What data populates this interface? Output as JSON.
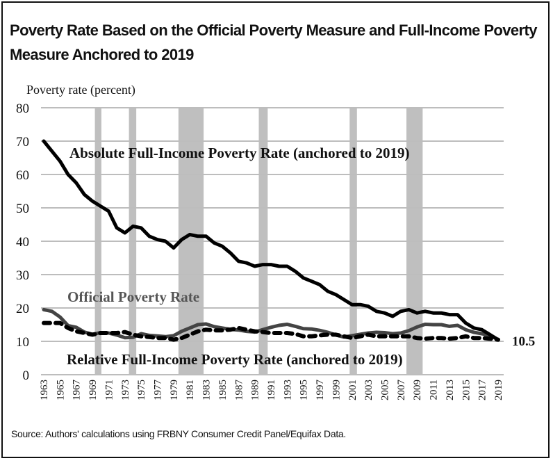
{
  "title": "Poverty Rate Based on the Official Poverty Measure and Full-Income Poverty Measure Anchored to 2019",
  "source": "Source: Authors' calculations using FRBNY Consumer Credit Panel/Equifax Data.",
  "chart_data": {
    "type": "line",
    "title": "Poverty Rate Based on the Official Poverty Measure and Full-Income Poverty Measure Anchored to 2019",
    "xlabel": "",
    "ylabel": "Poverty rate (percent)",
    "ylim": [
      0,
      80
    ],
    "yticks": [
      0,
      10,
      20,
      30,
      40,
      50,
      60,
      70,
      80
    ],
    "xlim": [
      1963,
      2019
    ],
    "xtick_labels": [
      "1963",
      "1965",
      "1967",
      "1969",
      "1971",
      "1973",
      "1975",
      "1977",
      "1979",
      "1981",
      "1983",
      "1985",
      "1987",
      "1989",
      "1991",
      "1993",
      "1995",
      "1997",
      "1999",
      "2001",
      "2003",
      "2005",
      "2007",
      "2009",
      "2011",
      "2013",
      "2015",
      "2017",
      "2019"
    ],
    "grid": "horizontal",
    "recessions": [
      [
        1969.3,
        1970.1
      ],
      [
        1973.5,
        1974.4
      ],
      [
        1979.6,
        1982.7
      ],
      [
        1989.5,
        1990.6
      ],
      [
        2000.7,
        2001.6
      ],
      [
        2007.7,
        2009.7
      ]
    ],
    "x": [
      1963,
      1964,
      1965,
      1966,
      1967,
      1968,
      1969,
      1970,
      1971,
      1972,
      1973,
      1974,
      1975,
      1976,
      1977,
      1978,
      1979,
      1980,
      1981,
      1982,
      1983,
      1984,
      1985,
      1986,
      1987,
      1988,
      1989,
      1990,
      1991,
      1992,
      1993,
      1994,
      1995,
      1996,
      1997,
      1998,
      1999,
      2000,
      2001,
      2002,
      2003,
      2004,
      2005,
      2006,
      2007,
      2008,
      2009,
      2010,
      2011,
      2012,
      2013,
      2014,
      2015,
      2016,
      2017,
      2018,
      2019
    ],
    "series": [
      {
        "name": "Absolute Full-Income Poverty Rate (anchored to 2019)",
        "style": "solid-black",
        "color": "#000000",
        "values": [
          70,
          67,
          64,
          60,
          57.5,
          54,
          52,
          50.5,
          49,
          44,
          42.5,
          44.5,
          44,
          41.5,
          40.5,
          40,
          38,
          40.5,
          42,
          41.5,
          41.5,
          39.5,
          38.5,
          36.5,
          34,
          33.5,
          32.5,
          33,
          33,
          32.5,
          32.5,
          31,
          29,
          28,
          27,
          25,
          24,
          22.5,
          21,
          21,
          20.5,
          19,
          18.5,
          17.5,
          19,
          19.5,
          18.5,
          19,
          18.5,
          18.5,
          18,
          18,
          15.5,
          14,
          13.5,
          12,
          10.5
        ]
      },
      {
        "name": "Official Poverty Rate",
        "style": "solid-gray",
        "color": "#444444",
        "values": [
          19.5,
          19,
          17.3,
          14.7,
          14.2,
          12.8,
          12.1,
          12.6,
          12.5,
          11.9,
          11.1,
          11.2,
          12.3,
          11.8,
          11.6,
          11.4,
          11.7,
          13,
          14,
          15,
          15.2,
          14.4,
          14,
          13.6,
          13.4,
          13,
          12.8,
          13.5,
          14.2,
          14.8,
          15.1,
          14.5,
          13.8,
          13.7,
          13.3,
          12.7,
          11.9,
          11.3,
          11.7,
          12.1,
          12.5,
          12.7,
          12.6,
          12.3,
          12.5,
          13.2,
          14.3,
          15.1,
          15,
          15,
          14.5,
          14.8,
          13.5,
          12.7,
          12.3,
          11.8,
          10.5
        ]
      },
      {
        "name": "Relative Full-Income Poverty Rate (anchored to 2019)",
        "style": "dashed-black",
        "color": "#000000",
        "values": [
          15.5,
          15.5,
          15.5,
          14,
          13,
          12.5,
          12,
          12.5,
          12.5,
          12.5,
          12.8,
          12,
          11.5,
          11.3,
          11,
          11,
          10.5,
          11,
          12,
          13,
          13.5,
          13.3,
          13.3,
          13.5,
          14,
          13.5,
          13,
          12.8,
          12.5,
          12.5,
          12.5,
          12.2,
          11.5,
          11.5,
          11.8,
          12,
          12,
          11.5,
          11,
          11.5,
          12,
          11.5,
          11.5,
          11.5,
          11.5,
          11.5,
          11,
          10.8,
          11,
          11,
          10.8,
          11,
          11.5,
          11,
          11,
          10.8,
          10.5
        ]
      }
    ],
    "annotations": [
      {
        "text": "10.5",
        "at_year": 2019,
        "at_value": 10.5
      }
    ],
    "series_labels": {
      "absolute": "Absolute Full-Income Poverty Rate (anchored to 2019)",
      "official": "Official Poverty Rate",
      "relative": "Relative Full-Income Poverty Rate (anchored to 2019)"
    },
    "end_value_label": "10.5"
  }
}
